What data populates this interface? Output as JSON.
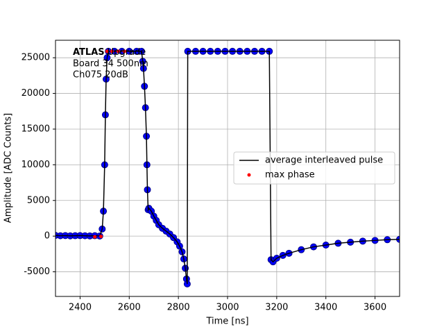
{
  "chart_data": {
    "type": "line",
    "xlabel": "Time [ns]",
    "ylabel": "Amplitude [ADC Counts]",
    "annotations": [
      "ATLAS",
      "Upgrade",
      "Board 34 500nm",
      "Ch075 20dB"
    ],
    "xlim": [
      2300,
      3700
    ],
    "xticks": [
      2400,
      2600,
      2800,
      3000,
      3200,
      3400,
      3600
    ],
    "ylim": [
      -8450,
      27450
    ],
    "yticks": [
      -5000,
      0,
      5000,
      10000,
      15000,
      20000,
      25000
    ],
    "grid": true,
    "legend": "center right",
    "series": [
      {
        "name": "average interleaved pulse",
        "color": "#000000",
        "marker_color": "#0000ff",
        "x": [
          2300,
          2320,
          2340,
          2360,
          2380,
          2400,
          2420,
          2440,
          2460,
          2480,
          2490,
          2495,
          2500,
          2503,
          2506,
          2510,
          2515,
          2540,
          2570,
          2600,
          2630,
          2650,
          2655,
          2658,
          2662,
          2666,
          2670,
          2672,
          2674,
          2677,
          2680,
          2690,
          2700,
          2710,
          2720,
          2735,
          2750,
          2765,
          2780,
          2795,
          2805,
          2815,
          2822,
          2828,
          2833,
          2836,
          2838,
          2870,
          2900,
          2930,
          2960,
          2990,
          3020,
          3050,
          3080,
          3110,
          3140,
          3170,
          3177,
          3185,
          3200,
          3225,
          3250,
          3300,
          3350,
          3400,
          3450,
          3500,
          3550,
          3600,
          3650,
          3700
        ],
        "values": [
          100,
          50,
          80,
          40,
          60,
          70,
          50,
          30,
          60,
          20,
          1000,
          3500,
          10000,
          17000,
          22000,
          25000,
          25900,
          25900,
          25900,
          25900,
          25900,
          25900,
          24500,
          23500,
          21000,
          18000,
          14000,
          10000,
          6500,
          3700,
          3900,
          3500,
          2800,
          2200,
          1600,
          1100,
          700,
          300,
          -200,
          -800,
          -1400,
          -2200,
          -3200,
          -4500,
          -6000,
          -6700,
          25900,
          25900,
          25900,
          25900,
          25900,
          25900,
          25900,
          25900,
          25900,
          25900,
          25900,
          25900,
          -3300,
          -3600,
          -3100,
          -2700,
          -2400,
          -1900,
          -1500,
          -1250,
          -1000,
          -850,
          -700,
          -600,
          -500,
          -450
        ]
      },
      {
        "name": "max phase",
        "color": "#ff0000",
        "type": "scatter",
        "x": [
          2460,
          2485,
          2510,
          2530,
          2555,
          2580
        ],
        "values": [
          -100,
          -50,
          25900,
          25900,
          25900,
          25900
        ]
      }
    ]
  }
}
